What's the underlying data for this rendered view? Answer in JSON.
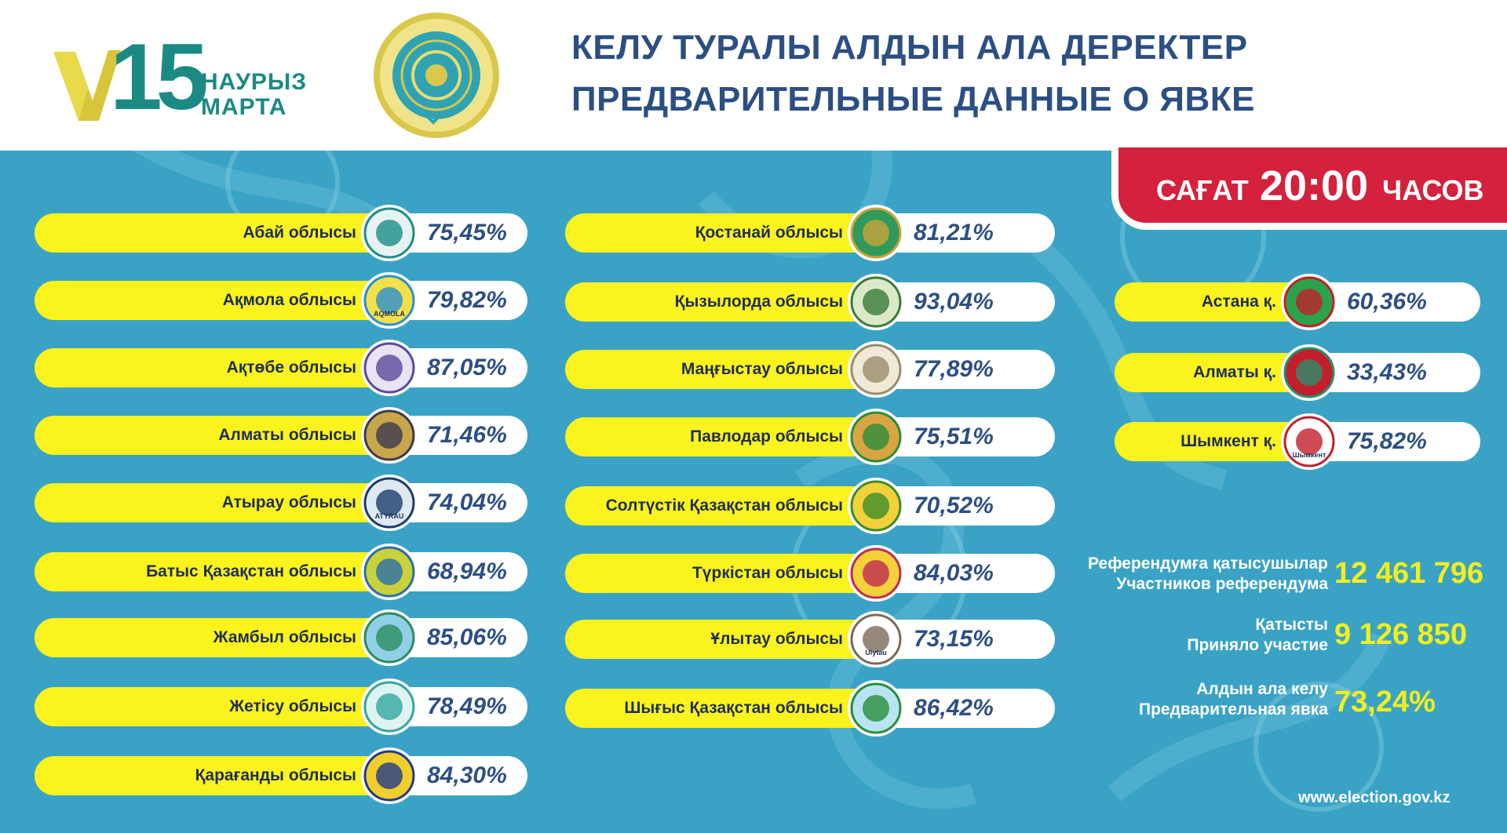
{
  "header": {
    "logo_number": "15",
    "logo_line1": "НАУРЫЗ",
    "logo_line2": "МАРТА",
    "title_line1": "КЕЛУ ТУРАЛЫ АЛДЫН АЛА ДЕРЕКТЕР",
    "title_line2": "ПРЕДВАРИТЕЛЬНЫЕ ДАННЫЕ О ЯВКЕ"
  },
  "time_banner": {
    "prefix": "САҒАТ",
    "time": "20:00",
    "suffix": "ЧАСОВ"
  },
  "regions_left": [
    {
      "name": "Абай облысы",
      "value": "75,45%",
      "emblem": "abai-emblem"
    },
    {
      "name": "Ақмола облысы",
      "value": "79,82%",
      "emblem": "aqmola-emblem",
      "emblem_text": "AQMOLA"
    },
    {
      "name": "Ақтөбе облысы",
      "value": "87,05%",
      "emblem": "aktobe-emblem"
    },
    {
      "name": "Алматы облысы",
      "value": "71,46%",
      "emblem": "almaty-region-emblem"
    },
    {
      "name": "Атырау облысы",
      "value": "74,04%",
      "emblem": "atyrau-emblem",
      "emblem_text": "ATYRAU"
    },
    {
      "name": "Батыс Қазақстан облысы",
      "value": "68,94%",
      "emblem": "west-kazakhstan-emblem"
    },
    {
      "name": "Жамбыл облысы",
      "value": "85,06%",
      "emblem": "zhambyl-emblem"
    },
    {
      "name": "Жетісу облысы",
      "value": "78,49%",
      "emblem": "zhetisu-emblem"
    },
    {
      "name": "Қарағанды облысы",
      "value": "84,30%",
      "emblem": "karaganda-emblem"
    }
  ],
  "regions_middle": [
    {
      "name": "Қостанай облысы",
      "value": "81,21%",
      "emblem": "kostanay-emblem"
    },
    {
      "name": "Қызылорда облысы",
      "value": "93,04%",
      "emblem": "kyzylorda-emblem"
    },
    {
      "name": "Маңғыстау облысы",
      "value": "77,89%",
      "emblem": "mangystau-emblem"
    },
    {
      "name": "Павлодар облысы",
      "value": "75,51%",
      "emblem": "pavlodar-emblem"
    },
    {
      "name": "Солтүстік Қазақстан облысы",
      "value": "70,52%",
      "emblem": "north-kazakhstan-emblem"
    },
    {
      "name": "Түркістан облысы",
      "value": "84,03%",
      "emblem": "turkistan-emblem"
    },
    {
      "name": "Ұлытау облысы",
      "value": "73,15%",
      "emblem": "ulytau-emblem",
      "emblem_text": "Ulytau"
    },
    {
      "name": "Шығыс Қазақстан облысы",
      "value": "86,42%",
      "emblem": "east-kazakhstan-emblem"
    }
  ],
  "cities": [
    {
      "name": "Астана қ.",
      "value": "60,36%",
      "emblem": "astana-emblem"
    },
    {
      "name": "Алматы қ.",
      "value": "33,43%",
      "emblem": "almaty-city-emblem"
    },
    {
      "name": "Шымкент қ.",
      "value": "75,82%",
      "emblem": "shymkent-emblem",
      "emblem_text": "Шымкент"
    }
  ],
  "stats": {
    "participants_label_kz": "Референдумға қатысушылар",
    "participants_label_ru": "Участников референдума",
    "participants_value": "12 461 796",
    "took_part_label_kz": "Қатысты",
    "took_part_label_ru": "Приняло участие",
    "took_part_value": "9 126 850",
    "turnout_label_kz": "Алдын ала келу",
    "turnout_label_ru": "Предварительная явка",
    "turnout_value": "73,24%"
  },
  "website": "www.election.gov.kz",
  "colors": {
    "background": "#3aa3c5",
    "pill_yellow": "#fbf31d",
    "pill_white": "#ffffff",
    "title_blue": "#2c4f83",
    "banner_red": "#d4213d",
    "stat_yellow": "#f3ef1c",
    "logo_teal": "#1b8a83",
    "logo_gold": "#d7c63b"
  }
}
